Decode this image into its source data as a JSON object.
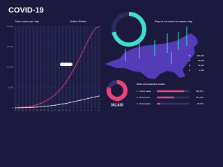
{
  "header": {
    "title": "COVID-19",
    "map_title": "Report coronavirus cases map",
    "country": "United States"
  },
  "map": {
    "legend": [
      "100,000",
      "50,000",
      "10,000",
      "1,000"
    ]
  },
  "chart_data": [
    {
      "type": "line",
      "title": "New cases per day",
      "categories": [
        "16",
        "17",
        "18",
        "19",
        "20",
        "21",
        "22",
        "23",
        "24",
        "25",
        "26",
        "27",
        "28",
        "29",
        "30",
        "31",
        "1",
        "2",
        "3",
        "4",
        "5",
        "6",
        "7",
        "8"
      ],
      "series": [
        {
          "color": "#e8467c",
          "values": [
            0,
            50,
            100,
            200,
            300,
            500,
            800,
            1100,
            1500,
            2000,
            2600,
            3300,
            4200,
            5200,
            6400,
            7800,
            9300,
            11000,
            12800,
            14700,
            16500,
            18200,
            19500,
            20000
          ]
        },
        {
          "color": "#e6e6f0",
          "values": [
            0,
            20,
            40,
            70,
            100,
            150,
            200,
            280,
            350,
            450,
            550,
            650,
            800,
            950,
            1100,
            1300,
            1500,
            1700,
            1900,
            2100,
            2300,
            2500,
            2700,
            2900
          ]
        }
      ],
      "ylim": [
        0,
        20000
      ],
      "yticks": [
        {
          "value": 0,
          "label": "0"
        },
        {
          "value": 5000,
          "label": "5,000"
        },
        {
          "value": 10000,
          "label": "10,000"
        },
        {
          "value": 15000,
          "label": "15,000"
        },
        {
          "value": 20000,
          "label": "20,000"
        }
      ]
    },
    {
      "type": "pie",
      "values": [
        72,
        28
      ],
      "colors": [
        "#3ee0d0",
        "#2c2b5e"
      ]
    },
    {
      "type": "pie",
      "values": [
        80,
        20
      ],
      "colors": [
        "#f0437a",
        "#3a2f6a"
      ],
      "center_label": "361,630"
    },
    {
      "type": "hbar",
      "title": "Total coronavirus cases",
      "categories": [
        "Active cases",
        "Recovered",
        "Total deaths"
      ],
      "values": [
        336673,
        211345,
        45345
      ],
      "value_labels": [
        "336,673",
        "211,345",
        "45,345"
      ],
      "color": "#e8467c",
      "xlim": [
        0,
        400000
      ]
    }
  ]
}
